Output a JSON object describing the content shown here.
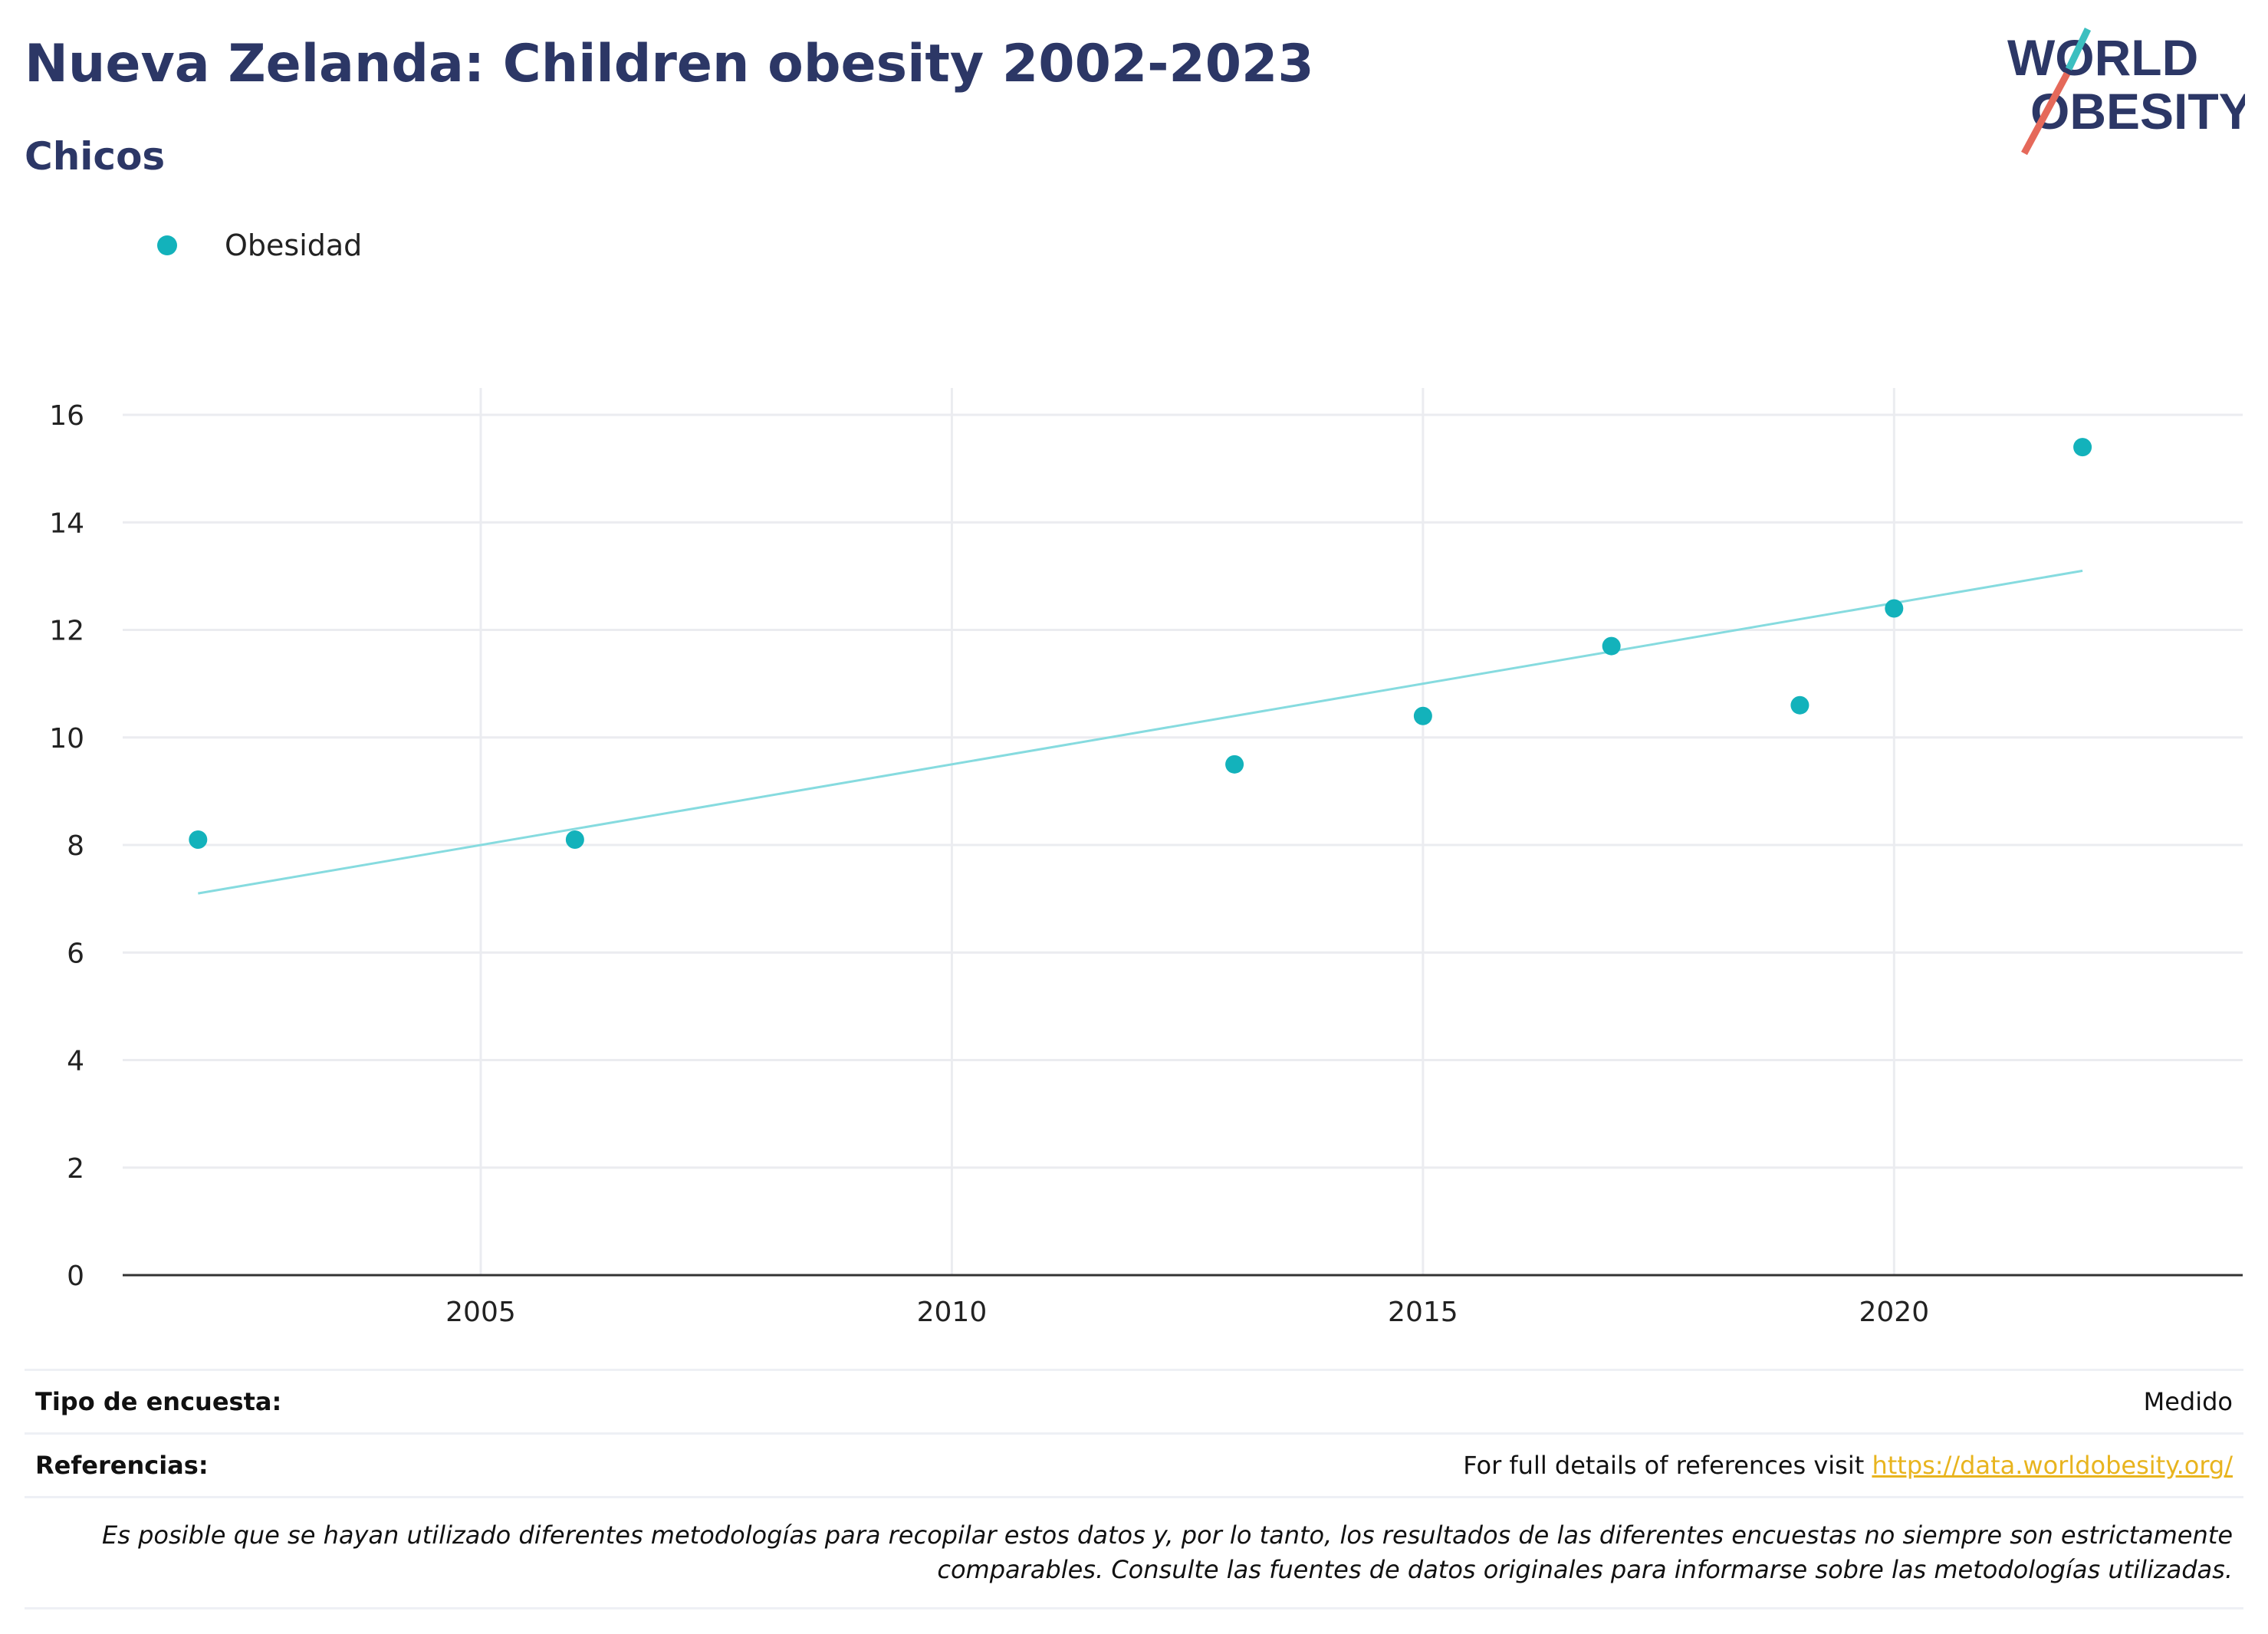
{
  "header": {
    "title": "Nueva Zelanda: Children obesity 2002-2023",
    "subtitle": "Chicos"
  },
  "logo": {
    "line1": "WORLD",
    "line2": "OBESITY"
  },
  "colors": {
    "title": "#2c3766",
    "point": "#13b2bb",
    "trend": "#86dbdf",
    "link": "#e8b41e",
    "logo_teal": "#3cbfc0",
    "logo_coral": "#e5695a"
  },
  "chart_data": {
    "type": "scatter",
    "title": "Nueva Zelanda: Children obesity 2002-2023",
    "subtitle": "Chicos",
    "series": [
      {
        "name": "Obesidad",
        "x": [
          2002,
          2006,
          2013,
          2015,
          2017,
          2019,
          2020,
          2022
        ],
        "y": [
          8.1,
          8.1,
          9.5,
          10.4,
          11.7,
          10.6,
          12.4,
          15.4
        ]
      }
    ],
    "trendline": {
      "x": [
        2002,
        2022
      ],
      "y": [
        7.1,
        13.1
      ]
    },
    "xlim": [
      2001.2,
      2023.7
    ],
    "ylim": [
      0,
      16.5
    ],
    "xticks": [
      2005,
      2010,
      2015,
      2020
    ],
    "yticks": [
      0,
      2,
      4,
      6,
      8,
      10,
      12,
      14,
      16
    ],
    "grid": true,
    "legend": "top-left"
  },
  "footer": {
    "survey_label": "Tipo de encuesta:",
    "survey_value": "Medido",
    "ref_label": "Referencias:",
    "ref_text": "For full details of references visit ",
    "ref_link": "https://data.worldobesity.org/",
    "note": "Es posible que se hayan utilizado diferentes metodologías para recopilar estos datos y, por lo tanto, los resultados de las diferentes encuestas no siempre son estrictamente comparables. Consulte las fuentes de datos originales para informarse sobre las metodologías utilizadas."
  }
}
